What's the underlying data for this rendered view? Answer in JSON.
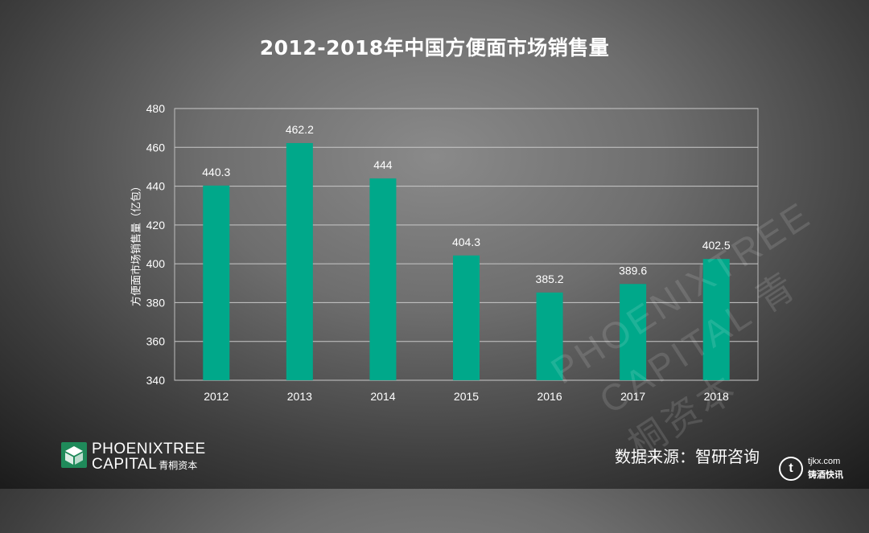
{
  "title": "2012-2018年中国方便面市场销售量",
  "chart_data": {
    "type": "bar",
    "categories": [
      "2012",
      "2013",
      "2014",
      "2015",
      "2016",
      "2017",
      "2018"
    ],
    "values": [
      440.3,
      462.2,
      444,
      404.3,
      385.2,
      389.6,
      402.5
    ],
    "data_labels": [
      "440.3",
      "462.2",
      "444",
      "404.3",
      "385.2",
      "389.6",
      "402.5"
    ],
    "ylabel": "方便面市场销售量（亿包）",
    "xlabel": "",
    "ylim": [
      340,
      480
    ],
    "yticks": [
      340,
      360,
      380,
      400,
      420,
      440,
      460,
      480
    ],
    "grid": true,
    "legend": "none",
    "bar_color": "#00a88a"
  },
  "watermark": {
    "line1": "PHOENIXTREE",
    "line2": "CAPITAL 青桐资本"
  },
  "logo": {
    "line1": "PHOENIXTREE",
    "line2": "CAPITAL",
    "line2_cn": "青桐资本",
    "mark_color": "#1f8a5a"
  },
  "source": "数据来源：智研咨询",
  "badge": {
    "icon_letter": "t",
    "line1": "tjkx.com",
    "line2": "铸酒快讯"
  }
}
